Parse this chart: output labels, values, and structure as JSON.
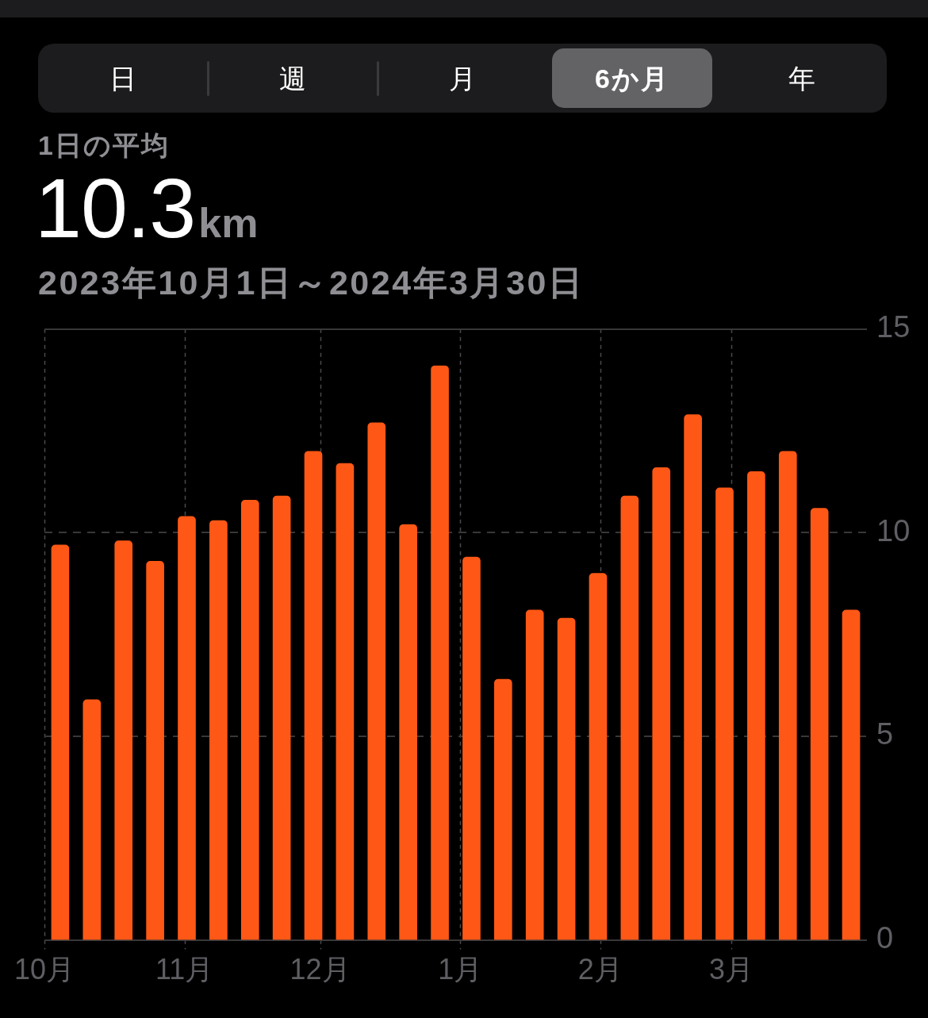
{
  "chart_data": {
    "type": "bar",
    "title": "1日の平均",
    "subtitle": "2023年10月1日～2024年3月30日",
    "annotations": [
      "日",
      "週",
      "月",
      "6か月",
      "年",
      "10.3km"
    ],
    "x": [
      "2023-10-04T12:00",
      "2023-10-11T12:00",
      "2023-10-18T12:00",
      "2023-10-25T12:00",
      "2023-11-01T12:00",
      "2023-11-08T12:00",
      "2023-11-15T12:00",
      "2023-11-22T12:00",
      "2023-11-29T12:00",
      "2023-12-06T12:00",
      "2023-12-13T12:00",
      "2023-12-20T12:00",
      "2023-12-27T12:00",
      "2024-01-03T12:00",
      "2024-01-10T12:00",
      "2024-01-17T12:00",
      "2024-01-24T12:00",
      "2024-01-31T12:00",
      "2024-02-07T12:00",
      "2024-02-14T12:00",
      "2024-02-21T12:00",
      "2024-02-28T12:00",
      "2024-03-06T12:00",
      "2024-03-13T12:00",
      "2024-03-20T12:00",
      "2024-03-27T12:00"
    ],
    "values": [
      9.7,
      5.9,
      9.8,
      9.3,
      10.4,
      10.3,
      10.8,
      10.9,
      12.0,
      11.7,
      12.7,
      10.2,
      14.1,
      9.4,
      6.4,
      8.1,
      7.9,
      9.0,
      10.9,
      11.6,
      12.9,
      11.1,
      11.5,
      12.0,
      10.6,
      8.1
    ],
    "color": "#ff5816",
    "xlim": [
      "2023-10-01",
      "2024-03-31"
    ],
    "xticks": [
      {
        "value": "2023-10-01",
        "label": "10月"
      },
      {
        "value": "2023-11-01",
        "label": "11月"
      },
      {
        "value": "2023-12-01",
        "label": "12月"
      },
      {
        "value": "2024-01-01",
        "label": "1月"
      },
      {
        "value": "2024-02-01",
        "label": "2月"
      },
      {
        "value": "2024-03-01",
        "label": "3月"
      }
    ],
    "ylim": [
      0,
      15
    ],
    "yticks": [
      0,
      5,
      10,
      15
    ],
    "grid": true
  }
}
